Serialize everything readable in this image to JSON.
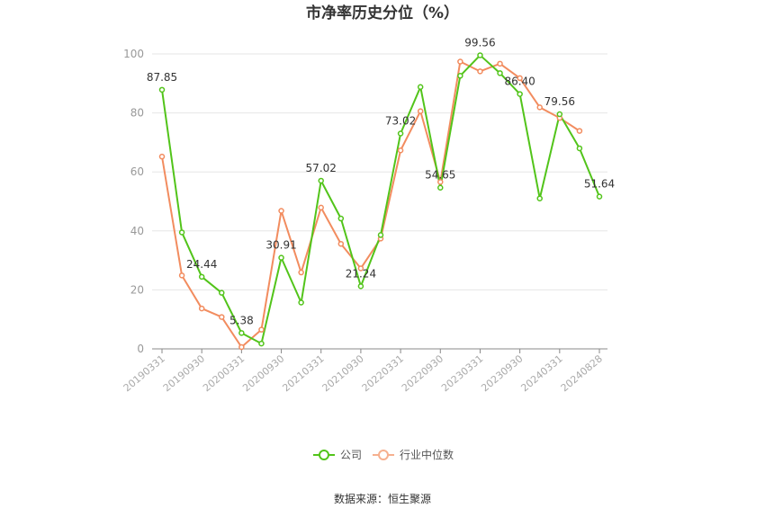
{
  "chart_data": {
    "type": "line",
    "title": "市净率历史分位（%）",
    "ylim": [
      0,
      100
    ],
    "yticks": [
      0,
      20,
      40,
      60,
      80,
      100
    ],
    "grid": true,
    "legend_position": "bottom",
    "x": [
      "20190331",
      "20190630",
      "20190930",
      "20191231",
      "20200331",
      "20200630",
      "20200930",
      "20201231",
      "20210331",
      "20210630",
      "20210930",
      "20211231",
      "20220331",
      "20220630",
      "20220930",
      "20221231",
      "20230331",
      "20230630",
      "20230930",
      "20231231",
      "20240331",
      "20240630",
      "20240828"
    ],
    "xtick_labels": [
      "20190331",
      "20190930",
      "20200331",
      "20200930",
      "20210331",
      "20210930",
      "20220331",
      "20220930",
      "20230331",
      "20230930",
      "20240331",
      "20240828"
    ],
    "xtick_indices": [
      0,
      2,
      4,
      6,
      8,
      10,
      12,
      14,
      16,
      18,
      20,
      22
    ],
    "series": [
      {
        "name": "公司",
        "color": "#52c41a",
        "values": [
          87.85,
          39.5,
          24.44,
          19,
          5.38,
          1.8,
          30.91,
          15.7,
          57.02,
          44.2,
          21.24,
          38.6,
          73.02,
          88.8,
          54.65,
          92.6,
          99.56,
          93.5,
          86.4,
          51.0,
          79.56,
          68.0,
          51.64
        ]
      },
      {
        "name": "行业中位数",
        "color": "#f28c5f",
        "values": [
          65.2,
          24.9,
          13.7,
          10.8,
          0.6,
          6.5,
          46.8,
          25.9,
          47.9,
          35.6,
          27.3,
          37.4,
          67.3,
          80.6,
          56.6,
          97.4,
          94.1,
          96.7,
          91.8,
          81.9,
          78.3,
          73.9,
          null
        ]
      }
    ],
    "data_labels": [
      {
        "index": 0,
        "text": "87.85"
      },
      {
        "index": 2,
        "text": "24.44"
      },
      {
        "index": 4,
        "text": "5.38"
      },
      {
        "index": 6,
        "text": "30.91"
      },
      {
        "index": 8,
        "text": "57.02"
      },
      {
        "index": 10,
        "text": "21.24"
      },
      {
        "index": 12,
        "text": "73.02"
      },
      {
        "index": 14,
        "text": "54.65"
      },
      {
        "index": 16,
        "text": "99.56"
      },
      {
        "index": 18,
        "text": "86.40"
      },
      {
        "index": 20,
        "text": "79.56"
      },
      {
        "index": 22,
        "text": "51.64"
      }
    ]
  },
  "legend": {
    "company": "公司",
    "industry": "行业中位数"
  },
  "source": "数据来源：恒生聚源"
}
